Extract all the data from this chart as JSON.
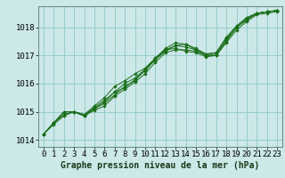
{
  "bg_color": "#cce8e8",
  "grid_color": "#99cccc",
  "line_color": "#1a6e1a",
  "marker_color": "#1a6e1a",
  "title": "Graphe pression niveau de la mer (hPa)",
  "tick_fontsize": 6.5,
  "title_fontsize": 7,
  "xlim": [
    -0.5,
    23.5
  ],
  "ylim": [
    1013.75,
    1018.75
  ],
  "yticks": [
    1014,
    1015,
    1016,
    1017,
    1018
  ],
  "xticks": [
    0,
    1,
    2,
    3,
    4,
    5,
    6,
    7,
    8,
    9,
    10,
    11,
    12,
    13,
    14,
    15,
    16,
    17,
    18,
    19,
    20,
    21,
    22,
    23
  ],
  "series": [
    [
      1014.2,
      1014.6,
      1014.9,
      1015.0,
      1014.9,
      1015.1,
      1015.3,
      1015.6,
      1015.9,
      1016.1,
      1016.5,
      1016.9,
      1017.2,
      1017.25,
      1017.15,
      1017.1,
      1016.95,
      1017.0,
      1017.5,
      1018.0,
      1018.3,
      1018.5,
      1018.55,
      1018.6
    ],
    [
      1014.2,
      1014.6,
      1014.9,
      1015.0,
      1014.85,
      1015.05,
      1015.2,
      1015.55,
      1015.8,
      1016.05,
      1016.35,
      1016.75,
      1017.1,
      1017.2,
      1017.2,
      1017.15,
      1017.0,
      1017.0,
      1017.45,
      1017.9,
      1018.2,
      1018.45,
      1018.5,
      1018.55
    ],
    [
      1014.2,
      1014.6,
      1015.0,
      1015.0,
      1014.85,
      1015.15,
      1015.4,
      1015.7,
      1015.85,
      1016.15,
      1016.45,
      1016.85,
      1017.2,
      1017.35,
      1017.3,
      1017.2,
      1017.05,
      1017.1,
      1017.6,
      1018.0,
      1018.3,
      1018.5,
      1018.55,
      1018.6
    ],
    [
      1014.2,
      1014.6,
      1015.0,
      1015.0,
      1014.9,
      1015.2,
      1015.5,
      1015.9,
      1016.1,
      1016.35,
      1016.55,
      1016.9,
      1017.25,
      1017.45,
      1017.4,
      1017.25,
      1017.05,
      1017.1,
      1017.65,
      1018.05,
      1018.35,
      1018.5,
      1018.55,
      1018.6
    ],
    [
      1014.2,
      1014.55,
      1014.85,
      1015.0,
      1014.85,
      1015.1,
      1015.35,
      1015.7,
      1016.0,
      1016.2,
      1016.5,
      1016.85,
      1017.15,
      1017.35,
      1017.4,
      1017.2,
      1017.0,
      1017.05,
      1017.55,
      1018.0,
      1018.25,
      1018.5,
      1018.55,
      1018.6
    ]
  ]
}
